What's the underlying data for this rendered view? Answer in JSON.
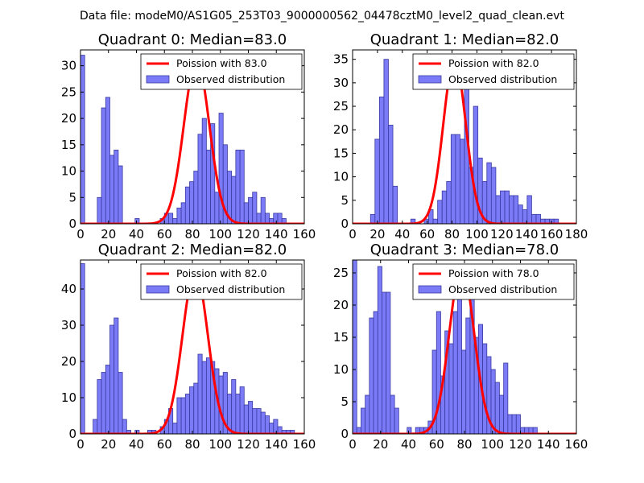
{
  "suptitle": "Data file: modeM0/AS1G05_253T03_9000000562_04478cztM0_level2_quad_clean.evt",
  "chart_data": [
    {
      "type": "bar",
      "title": "Quadrant 0: Median=83.0",
      "median": 83.0,
      "bin_width": 3,
      "xlim": [
        0,
        160
      ],
      "ylim": [
        0,
        33
      ],
      "xticks": [
        0,
        20,
        40,
        60,
        80,
        100,
        120,
        140,
        160
      ],
      "yticks": [
        0,
        5,
        10,
        15,
        20,
        25,
        30
      ],
      "legend": {
        "line": "Poission with 83.0",
        "bars": "Observed distribution",
        "position": "upper-right"
      },
      "colors": {
        "line": "#ff0000",
        "bars": "#7b7bf8",
        "edge": "#3a3aa0"
      },
      "curve": {
        "mu": 83.0,
        "peak": 31
      },
      "bins": [
        [
          0,
          32
        ],
        [
          12,
          5
        ],
        [
          15,
          22
        ],
        [
          18,
          24
        ],
        [
          21,
          13
        ],
        [
          24,
          14
        ],
        [
          27,
          11
        ],
        [
          39,
          1
        ],
        [
          57,
          1
        ],
        [
          60,
          2
        ],
        [
          63,
          2
        ],
        [
          66,
          1
        ],
        [
          69,
          3
        ],
        [
          72,
          4
        ],
        [
          75,
          7
        ],
        [
          78,
          8
        ],
        [
          81,
          10
        ],
        [
          84,
          17
        ],
        [
          87,
          20
        ],
        [
          90,
          14
        ],
        [
          93,
          19
        ],
        [
          96,
          6
        ],
        [
          99,
          21
        ],
        [
          102,
          15
        ],
        [
          105,
          10
        ],
        [
          108,
          9
        ],
        [
          111,
          14
        ],
        [
          114,
          14
        ],
        [
          117,
          4
        ],
        [
          120,
          5
        ],
        [
          123,
          6
        ],
        [
          126,
          2
        ],
        [
          129,
          5
        ],
        [
          132,
          2
        ],
        [
          135,
          1
        ],
        [
          138,
          2
        ],
        [
          141,
          2
        ],
        [
          144,
          1
        ]
      ]
    },
    {
      "type": "bar",
      "title": "Quadrant 1: Median=82.0",
      "median": 82.0,
      "bin_width": 3.6,
      "xlim": [
        0,
        180
      ],
      "ylim": [
        0,
        37
      ],
      "xticks": [
        0,
        20,
        40,
        60,
        80,
        100,
        120,
        140,
        160,
        180
      ],
      "yticks": [
        0,
        5,
        10,
        15,
        20,
        25,
        30,
        35
      ],
      "legend": {
        "line": "Poission with 82.0",
        "bars": "Observed distribution",
        "position": "upper-right"
      },
      "colors": {
        "line": "#ff0000",
        "bars": "#7b7bf8",
        "edge": "#3a3aa0"
      },
      "curve": {
        "mu": 82.0,
        "peak": 35
      },
      "bins": [
        [
          14.4,
          2
        ],
        [
          18,
          18
        ],
        [
          21.6,
          27
        ],
        [
          25.2,
          35
        ],
        [
          28.8,
          21
        ],
        [
          32.4,
          8
        ],
        [
          46.8,
          1
        ],
        [
          57.6,
          1
        ],
        [
          61.2,
          3
        ],
        [
          64.8,
          1
        ],
        [
          68.4,
          5
        ],
        [
          72,
          7
        ],
        [
          75.6,
          9
        ],
        [
          79.2,
          19
        ],
        [
          82.8,
          19
        ],
        [
          86.4,
          18
        ],
        [
          90,
          34
        ],
        [
          93.6,
          12
        ],
        [
          97.2,
          25
        ],
        [
          100.8,
          14
        ],
        [
          104.4,
          9
        ],
        [
          108,
          13
        ],
        [
          111.6,
          12
        ],
        [
          115.2,
          6
        ],
        [
          118.8,
          7
        ],
        [
          122.4,
          7
        ],
        [
          126,
          6
        ],
        [
          129.6,
          6
        ],
        [
          133.2,
          4
        ],
        [
          136.8,
          3
        ],
        [
          140.4,
          6
        ],
        [
          144,
          2
        ],
        [
          147.6,
          2
        ],
        [
          151.2,
          1
        ],
        [
          154.8,
          1
        ],
        [
          158.4,
          1
        ],
        [
          162,
          1
        ]
      ]
    },
    {
      "type": "bar",
      "title": "Quadrant 2: Median=82.0",
      "median": 82.0,
      "bin_width": 3,
      "xlim": [
        0,
        160
      ],
      "ylim": [
        0,
        48
      ],
      "xticks": [
        0,
        20,
        40,
        60,
        80,
        100,
        120,
        140,
        160
      ],
      "yticks": [
        0,
        10,
        20,
        30,
        40
      ],
      "legend": {
        "line": "Poission with 82.0",
        "bars": "Observed distribution",
        "position": "upper-right"
      },
      "colors": {
        "line": "#ff0000",
        "bars": "#7b7bf8",
        "edge": "#3a3aa0"
      },
      "curve": {
        "mu": 82.0,
        "peak": 45
      },
      "bins": [
        [
          0,
          47
        ],
        [
          9,
          4
        ],
        [
          12,
          15
        ],
        [
          15,
          17
        ],
        [
          18,
          19
        ],
        [
          21,
          30
        ],
        [
          24,
          32
        ],
        [
          27,
          17
        ],
        [
          30,
          4
        ],
        [
          33,
          1
        ],
        [
          39,
          1
        ],
        [
          48,
          1
        ],
        [
          51,
          1
        ],
        [
          57,
          2
        ],
        [
          60,
          4
        ],
        [
          63,
          7
        ],
        [
          66,
          3
        ],
        [
          69,
          10
        ],
        [
          72,
          10
        ],
        [
          75,
          11
        ],
        [
          78,
          13
        ],
        [
          81,
          14
        ],
        [
          84,
          22
        ],
        [
          87,
          20
        ],
        [
          90,
          21
        ],
        [
          93,
          20
        ],
        [
          96,
          18
        ],
        [
          99,
          16
        ],
        [
          102,
          17
        ],
        [
          105,
          11
        ],
        [
          108,
          15
        ],
        [
          111,
          11
        ],
        [
          114,
          13
        ],
        [
          117,
          8
        ],
        [
          120,
          9
        ],
        [
          123,
          7
        ],
        [
          126,
          7
        ],
        [
          129,
          6
        ],
        [
          132,
          5
        ],
        [
          135,
          3
        ],
        [
          138,
          4
        ],
        [
          141,
          2
        ],
        [
          144,
          1
        ],
        [
          147,
          1
        ],
        [
          150,
          1
        ]
      ]
    },
    {
      "type": "bar",
      "title": "Quadrant 3: Median=78.0",
      "median": 78.0,
      "bin_width": 3,
      "xlim": [
        0,
        160
      ],
      "ylim": [
        0,
        27
      ],
      "xticks": [
        0,
        20,
        40,
        60,
        80,
        100,
        120,
        140,
        160
      ],
      "yticks": [
        0,
        5,
        10,
        15,
        20,
        25
      ],
      "legend": {
        "line": "Poission with 78.0",
        "bars": "Observed distribution",
        "position": "upper-right"
      },
      "colors": {
        "line": "#ff0000",
        "bars": "#7b7bf8",
        "edge": "#3a3aa0"
      },
      "curve": {
        "mu": 78.0,
        "peak": 26
      },
      "bins": [
        [
          0,
          27
        ],
        [
          3,
          1
        ],
        [
          6,
          4
        ],
        [
          9,
          6
        ],
        [
          12,
          18
        ],
        [
          15,
          19
        ],
        [
          18,
          26
        ],
        [
          21,
          22
        ],
        [
          24,
          22
        ],
        [
          27,
          6
        ],
        [
          30,
          4
        ],
        [
          39,
          1
        ],
        [
          45,
          1
        ],
        [
          48,
          1
        ],
        [
          51,
          1
        ],
        [
          54,
          2
        ],
        [
          57,
          13
        ],
        [
          60,
          19
        ],
        [
          63,
          9
        ],
        [
          66,
          16
        ],
        [
          69,
          14
        ],
        [
          72,
          19
        ],
        [
          75,
          22
        ],
        [
          78,
          13
        ],
        [
          81,
          18
        ],
        [
          84,
          23
        ],
        [
          87,
          15
        ],
        [
          90,
          17
        ],
        [
          93,
          14
        ],
        [
          96,
          12
        ],
        [
          99,
          10
        ],
        [
          102,
          8
        ],
        [
          105,
          6
        ],
        [
          108,
          11
        ],
        [
          111,
          3
        ],
        [
          114,
          3
        ],
        [
          117,
          3
        ],
        [
          120,
          1
        ],
        [
          123,
          1
        ],
        [
          126,
          1
        ],
        [
          129,
          1
        ]
      ]
    }
  ]
}
